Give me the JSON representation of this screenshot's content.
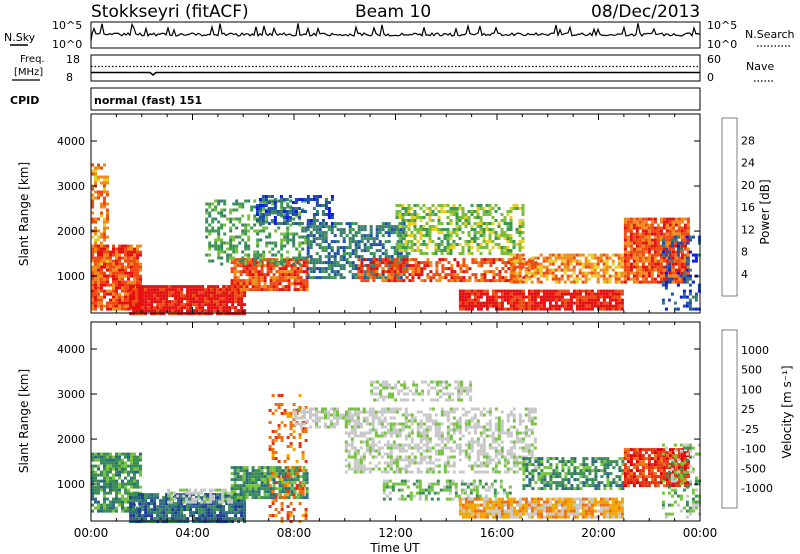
{
  "header": {
    "station": "Stokkseyri (fitACF)",
    "beam": "Beam 10",
    "date": "08/Dec/2013"
  },
  "strip_labels": {
    "nsky": "N.Sky",
    "nsearch": "N.Search",
    "freq_line1": "Freq.",
    "freq_line2": "[MHz]",
    "nave": "Nave",
    "cpid": "CPID",
    "cpid_value": "normal (fast) 151",
    "nsky_ticks": [
      "10^5",
      "10^0"
    ],
    "nsearch_ticks": [
      "10^5",
      "10^0"
    ],
    "freq_ticks": [
      "18",
      "8"
    ],
    "nave_ticks": [
      "60",
      "0"
    ]
  },
  "colors": {
    "power_scale": [
      "#0a1be6",
      "#1f4fa8",
      "#3a7d6e",
      "#3c9a4f",
      "#7bbd3c",
      "#e7cf2a",
      "#f08a1a",
      "#ee4a12",
      "#e41010"
    ],
    "velocity_scale": [
      "#1c3c9a",
      "#2d6a80",
      "#3a8d55",
      "#74c43c",
      "#c8c8c8",
      "#c8c8c8",
      "#f2a400",
      "#ef6e0f",
      "#e53312",
      "#e00000"
    ]
  },
  "chart_data": [
    {
      "type": "heatmap",
      "name": "power",
      "xlabel": "",
      "ylabel": "Slant Range [km]",
      "x_ticks": [
        "00:00",
        "04:00",
        "08:00",
        "12:00",
        "16:00",
        "20:00",
        "00:00"
      ],
      "y_ticks": [
        1000,
        2000,
        3000,
        4000
      ],
      "xlim_hours": [
        0,
        24
      ],
      "ylim_km": [
        180,
        4600
      ],
      "colorbar": {
        "label": "Power [dB]",
        "tick_values": [
          "28",
          "24",
          "20",
          "16",
          "12",
          "8",
          "4"
        ]
      },
      "regions": [
        {
          "t0": 0.0,
          "t1": 0.6,
          "r0": 1000,
          "r1": 3500,
          "level": 6,
          "density": 0.5
        },
        {
          "t0": 0.0,
          "t1": 2.0,
          "r0": 300,
          "r1": 1700,
          "level": 7,
          "density": 0.9
        },
        {
          "t0": 1.5,
          "t1": 6.0,
          "r0": 180,
          "r1": 800,
          "level": 8,
          "density": 0.95
        },
        {
          "t0": 5.5,
          "t1": 8.5,
          "r0": 700,
          "r1": 1400,
          "level": 7,
          "density": 0.85
        },
        {
          "t0": 4.5,
          "t1": 8.5,
          "r0": 1300,
          "r1": 2700,
          "level": 3,
          "density": 0.45
        },
        {
          "t0": 6.5,
          "t1": 9.5,
          "r0": 2200,
          "r1": 2800,
          "level": 1,
          "density": 0.55
        },
        {
          "t0": 8.5,
          "t1": 12.5,
          "r0": 1000,
          "r1": 2200,
          "level": 2,
          "density": 0.6
        },
        {
          "t0": 10.5,
          "t1": 17.5,
          "r0": 900,
          "r1": 1400,
          "level": 7,
          "density": 0.6
        },
        {
          "t0": 12.0,
          "t1": 17.0,
          "r0": 1500,
          "r1": 2600,
          "level": 4,
          "density": 0.55
        },
        {
          "t0": 14.5,
          "t1": 21.0,
          "r0": 300,
          "r1": 700,
          "level": 8,
          "density": 0.9
        },
        {
          "t0": 16.5,
          "t1": 21.0,
          "r0": 900,
          "r1": 1500,
          "level": 6,
          "density": 0.7
        },
        {
          "t0": 21.0,
          "t1": 23.5,
          "r0": 900,
          "r1": 2300,
          "level": 7,
          "density": 0.9
        },
        {
          "t0": 22.5,
          "t1": 24.0,
          "r0": 300,
          "r1": 1900,
          "level": 1,
          "density": 0.35
        }
      ]
    },
    {
      "type": "heatmap",
      "name": "velocity",
      "xlabel": "Time UT",
      "ylabel": "Slant Range [km]",
      "x_ticks": [
        "00:00",
        "04:00",
        "08:00",
        "12:00",
        "16:00",
        "20:00",
        "00:00"
      ],
      "y_ticks": [
        1000,
        2000,
        3000,
        4000
      ],
      "xlim_hours": [
        0,
        24
      ],
      "ylim_km": [
        180,
        4600
      ],
      "colorbar": {
        "label": "Velocity [m s⁻¹]",
        "tick_values": [
          "1000",
          "500",
          "100",
          "25",
          "-25",
          "-100",
          "-500",
          "-1000"
        ]
      },
      "regions": [
        {
          "t0": 0.0,
          "t1": 2.0,
          "r0": 400,
          "r1": 1700,
          "level": 2,
          "density": 0.8
        },
        {
          "t0": 1.5,
          "t1": 6.0,
          "r0": 180,
          "r1": 800,
          "level": 1,
          "density": 0.9
        },
        {
          "t0": 3.0,
          "t1": 5.5,
          "r0": 600,
          "r1": 900,
          "level": 4,
          "density": 0.6
        },
        {
          "t0": 5.5,
          "t1": 8.5,
          "r0": 700,
          "r1": 1400,
          "level": 2,
          "density": 0.85
        },
        {
          "t0": 7.0,
          "t1": 8.5,
          "r0": 200,
          "r1": 3000,
          "level": 7,
          "density": 0.25
        },
        {
          "t0": 8.0,
          "t1": 10.5,
          "r0": 2300,
          "r1": 2700,
          "level": 4,
          "density": 0.6
        },
        {
          "t0": 10.0,
          "t1": 17.5,
          "r0": 1300,
          "r1": 2700,
          "level": 4,
          "density": 0.55
        },
        {
          "t0": 11.0,
          "t1": 15.0,
          "r0": 2900,
          "r1": 3300,
          "level": 4,
          "density": 0.5
        },
        {
          "t0": 11.5,
          "t1": 16.5,
          "r0": 700,
          "r1": 1100,
          "level": 3,
          "density": 0.5
        },
        {
          "t0": 14.5,
          "t1": 21.0,
          "r0": 300,
          "r1": 700,
          "level": 6,
          "density": 0.9
        },
        {
          "t0": 17.0,
          "t1": 21.0,
          "r0": 900,
          "r1": 1600,
          "level": 2,
          "density": 0.65
        },
        {
          "t0": 21.0,
          "t1": 23.5,
          "r0": 1000,
          "r1": 1800,
          "level": 8,
          "density": 0.9
        },
        {
          "t0": 22.5,
          "t1": 24.0,
          "r0": 300,
          "r1": 1900,
          "level": 3,
          "density": 0.35
        }
      ]
    }
  ]
}
